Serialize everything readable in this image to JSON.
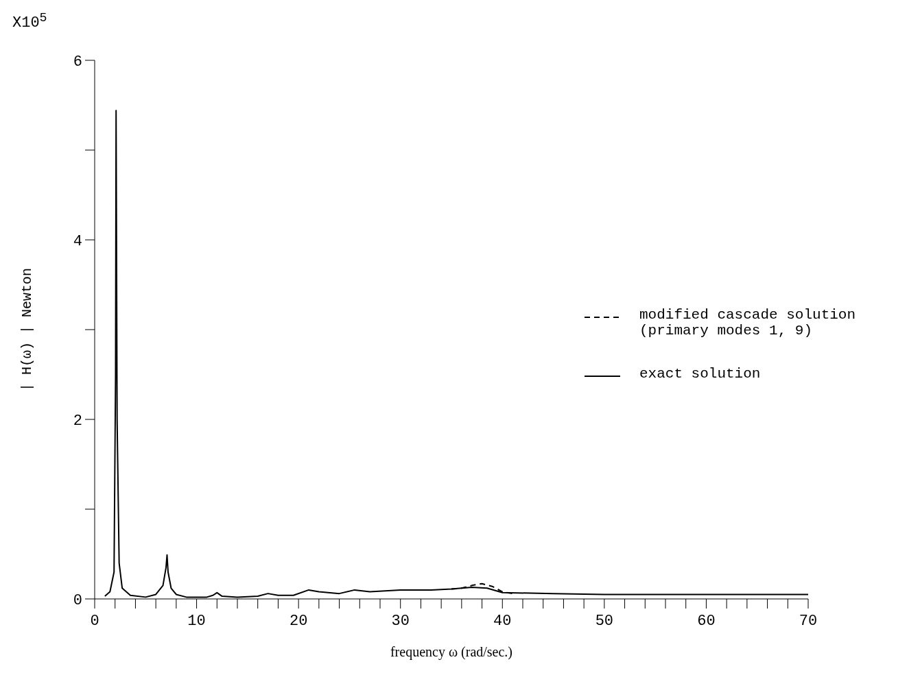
{
  "chart_data": {
    "type": "line",
    "xlabel": "frequency ω (rad/sec.)",
    "ylabel": "| H(ω) |  Newton",
    "annotations": [
      "X10$^{5}$"
    ],
    "xlim": [
      0,
      70
    ],
    "xticks": [
      0,
      {
        "value": 2,
        "label": null
      },
      {
        "value": 4,
        "label": null
      },
      {
        "value": 6,
        "label": null
      },
      {
        "value": 8,
        "label": null
      },
      10,
      {
        "value": 12,
        "label": null
      },
      {
        "value": 14,
        "label": null
      },
      {
        "value": 16,
        "label": null
      },
      {
        "value": 18,
        "label": null
      },
      20,
      {
        "value": 22,
        "label": null
      },
      {
        "value": 24,
        "label": null
      },
      {
        "value": 26,
        "label": null
      },
      {
        "value": 28,
        "label": null
      },
      30,
      {
        "value": 32,
        "label": null
      },
      {
        "value": 34,
        "label": null
      },
      {
        "value": 36,
        "label": null
      },
      {
        "value": 38,
        "label": null
      },
      40,
      {
        "value": 42,
        "label": null
      },
      {
        "value": 44,
        "label": null
      },
      {
        "value": 46,
        "label": null
      },
      {
        "value": 48,
        "label": null
      },
      50,
      {
        "value": 52,
        "label": null
      },
      {
        "value": 54,
        "label": null
      },
      {
        "value": 56,
        "label": null
      },
      {
        "value": 58,
        "label": null
      },
      60,
      {
        "value": 62,
        "label": null
      },
      {
        "value": 64,
        "label": null
      },
      {
        "value": 66,
        "label": null
      },
      {
        "value": 68,
        "label": null
      },
      70
    ],
    "ylim": [
      0,
      6
    ],
    "yticks": [
      0,
      {
        "value": 1,
        "label": null
      },
      2,
      {
        "value": 3,
        "label": null
      },
      4,
      {
        "value": 5,
        "label": null
      },
      6
    ],
    "grid": false,
    "legend": "right",
    "marker": "none",
    "series": [
      {
        "name": "modified cascade solution\n(primary modes 1, 9)",
        "color": "#000000",
        "line_style": "dashed",
        "x": [
          35,
          36,
          37,
          38,
          39,
          40,
          41
        ],
        "values": [
          0.11,
          0.12,
          0.15,
          0.17,
          0.14,
          0.08,
          0.06
        ]
      },
      {
        "name": "exact solution",
        "color": "#000000",
        "line_style": "solid",
        "x": [
          1.0,
          1.5,
          1.9,
          2.05,
          2.1,
          2.2,
          2.4,
          2.7,
          3.5,
          5,
          6,
          6.7,
          7.0,
          7.1,
          7.2,
          7.5,
          8,
          9,
          11,
          11.6,
          12,
          12.5,
          14,
          16,
          17,
          18,
          19.5,
          21,
          22,
          24,
          25.5,
          27,
          30,
          33,
          35,
          37,
          38.5,
          40,
          45,
          50,
          60,
          70
        ],
        "values": [
          0.03,
          0.08,
          0.3,
          2.5,
          5.44,
          2.0,
          0.4,
          0.12,
          0.04,
          0.02,
          0.05,
          0.15,
          0.35,
          0.49,
          0.3,
          0.12,
          0.05,
          0.02,
          0.02,
          0.04,
          0.07,
          0.03,
          0.02,
          0.03,
          0.06,
          0.04,
          0.04,
          0.1,
          0.08,
          0.06,
          0.1,
          0.08,
          0.1,
          0.1,
          0.11,
          0.13,
          0.12,
          0.07,
          0.06,
          0.05,
          0.05,
          0.05
        ]
      }
    ]
  }
}
